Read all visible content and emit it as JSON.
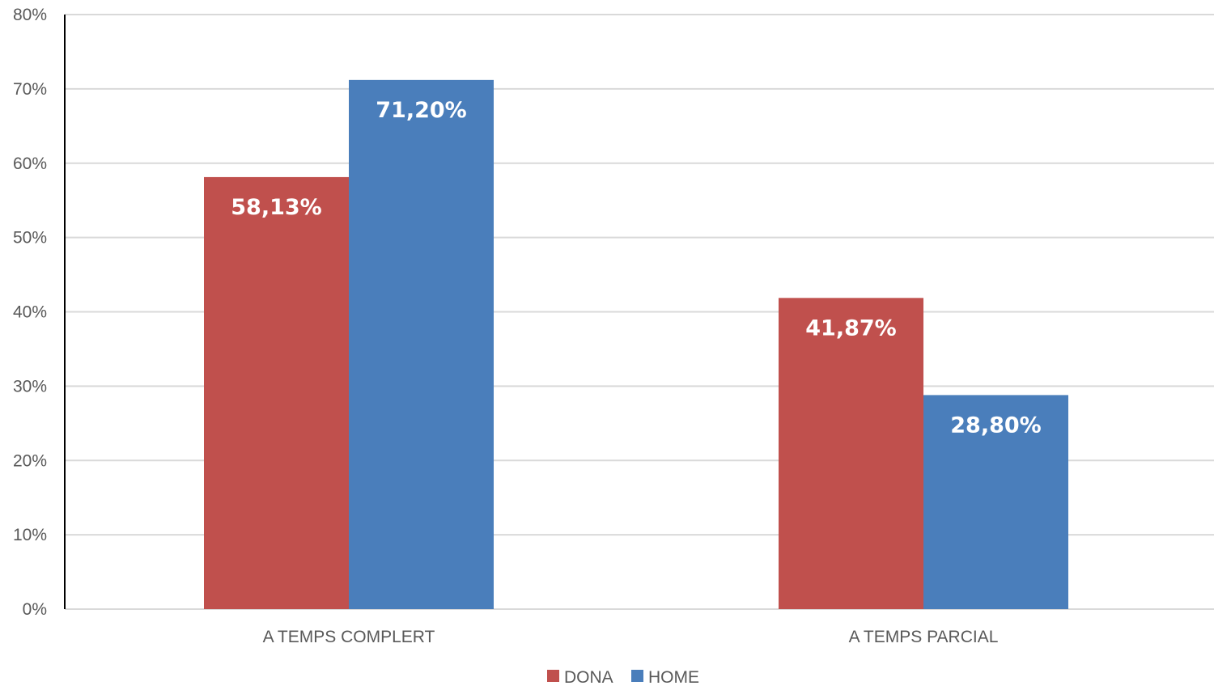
{
  "chart_data": {
    "type": "bar",
    "categories": [
      "A TEMPS COMPLERT",
      "A TEMPS PARCIAL"
    ],
    "series": [
      {
        "name": "DONA",
        "values": [
          58.13,
          41.87
        ],
        "labels": [
          "58,13%",
          "41,87%"
        ],
        "color": "#C0504D"
      },
      {
        "name": "HOME",
        "values": [
          71.2,
          28.8
        ],
        "labels": [
          "71,20%",
          "28,80%"
        ],
        "color": "#4A7EBB"
      }
    ],
    "yticks": [
      "0%",
      "10%",
      "20%",
      "30%",
      "40%",
      "50%",
      "60%",
      "70%",
      "80%"
    ],
    "ylim": [
      0,
      80
    ],
    "grid": true,
    "legend_position": "bottom",
    "gridline_color": "#D9D9D9",
    "axis_color": "#000000"
  }
}
